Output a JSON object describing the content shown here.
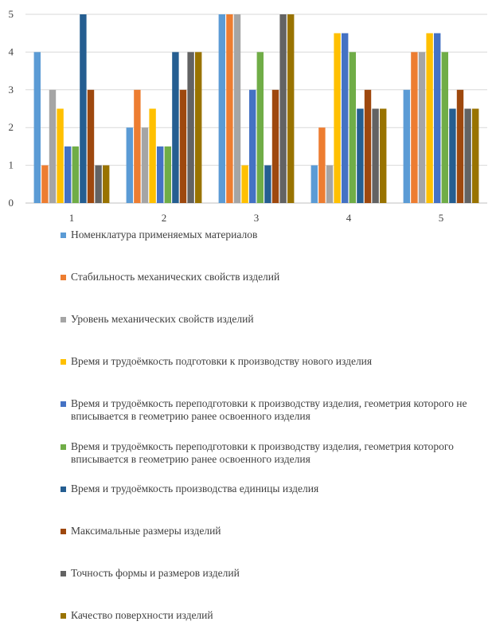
{
  "chart_data": {
    "type": "bar",
    "title": "",
    "xlabel": "",
    "ylabel": "",
    "ylim": [
      0,
      5
    ],
    "yticks": [
      "0",
      "1",
      "2",
      "3",
      "4",
      "5"
    ],
    "grid": true,
    "legend_position": "bottom",
    "categories": [
      "1",
      "2",
      "3",
      "4",
      "5"
    ],
    "series": [
      {
        "name": "Номенклатура применяемых материалов",
        "color": "#5B9BD5",
        "values": [
          4,
          2,
          5,
          1,
          3
        ]
      },
      {
        "name": "Стабильность механических свойств изделий",
        "color": "#ED7D31",
        "values": [
          1,
          3,
          5,
          2,
          4
        ]
      },
      {
        "name": "Уровень механических свойств изделий",
        "color": "#A5A5A5",
        "values": [
          3,
          2,
          5,
          1,
          4
        ]
      },
      {
        "name": "Время и трудоёмкость подготовки к производству нового изделия",
        "color": "#FFC000",
        "values": [
          2.5,
          2.5,
          1,
          4.5,
          4.5
        ]
      },
      {
        "name": "Время и трудоёмкость переподготовки к производству изделия, геометрия которого не вписывается в геометрию ранее освоенного изделия",
        "color": "#4472C4",
        "values": [
          1.5,
          1.5,
          3,
          4.5,
          4.5
        ]
      },
      {
        "name": "Время и трудоёмкость переподготовки к производству изделия, геометрия которого вписывается в геометрию ранее освоенного изделия",
        "color": "#70AD47",
        "values": [
          1.5,
          1.5,
          4,
          4,
          4
        ]
      },
      {
        "name": "Время и трудоёмкость производства единицы изделия",
        "color": "#255E91",
        "values": [
          5,
          4,
          1,
          2.5,
          2.5
        ]
      },
      {
        "name": "Максимальные размеры изделий",
        "color": "#9E480E",
        "values": [
          3,
          3,
          3,
          3,
          3
        ]
      },
      {
        "name": "Точность формы и размеров изделий",
        "color": "#636363",
        "values": [
          1,
          4,
          5,
          2.5,
          2.5
        ]
      },
      {
        "name": "Качество поверхности изделий",
        "color": "#997300",
        "values": [
          1,
          4,
          5,
          2.5,
          2.5
        ]
      }
    ]
  }
}
